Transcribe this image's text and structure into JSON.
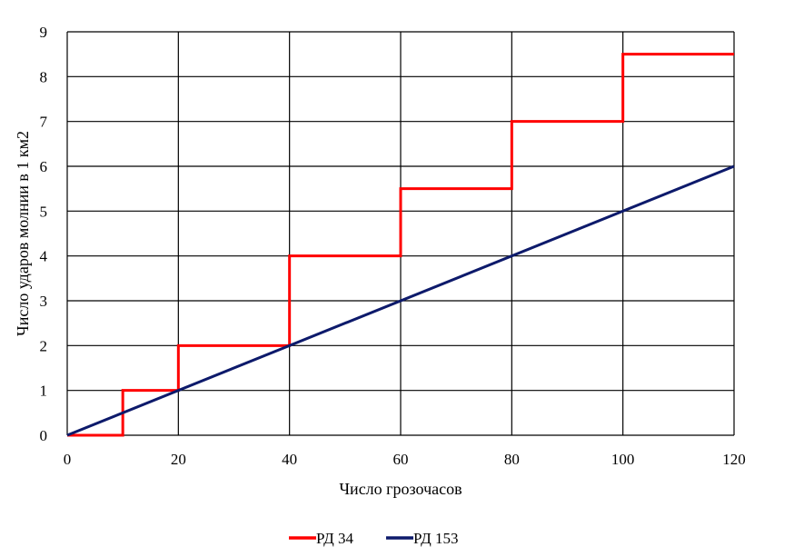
{
  "chart_data": {
    "type": "line",
    "xlabel": "Число грозочасов",
    "ylabel": "Число ударов молнии в 1 км2",
    "xlim": [
      0,
      120
    ],
    "ylim": [
      0,
      9
    ],
    "xticks": [
      "0",
      "20",
      "40",
      "60",
      "80",
      "100",
      "120"
    ],
    "yticks": [
      "0",
      "1",
      "2",
      "3",
      "4",
      "5",
      "6",
      "7",
      "8",
      "9"
    ],
    "grid": true,
    "legend_position": "bottom",
    "series": [
      {
        "name": "РД 34",
        "color": "#ff0000",
        "style": "step",
        "x": [
          0,
          10,
          10,
          20,
          20,
          40,
          40,
          60,
          60,
          80,
          80,
          100,
          100,
          120
        ],
        "y": [
          0,
          0,
          1,
          1,
          2,
          2,
          4,
          4,
          5.5,
          5.5,
          7,
          7,
          8.5,
          8.5
        ]
      },
      {
        "name": "РД 153",
        "color": "#0d1a6b",
        "style": "line",
        "x": [
          0,
          120
        ],
        "y": [
          0,
          6
        ]
      }
    ]
  }
}
